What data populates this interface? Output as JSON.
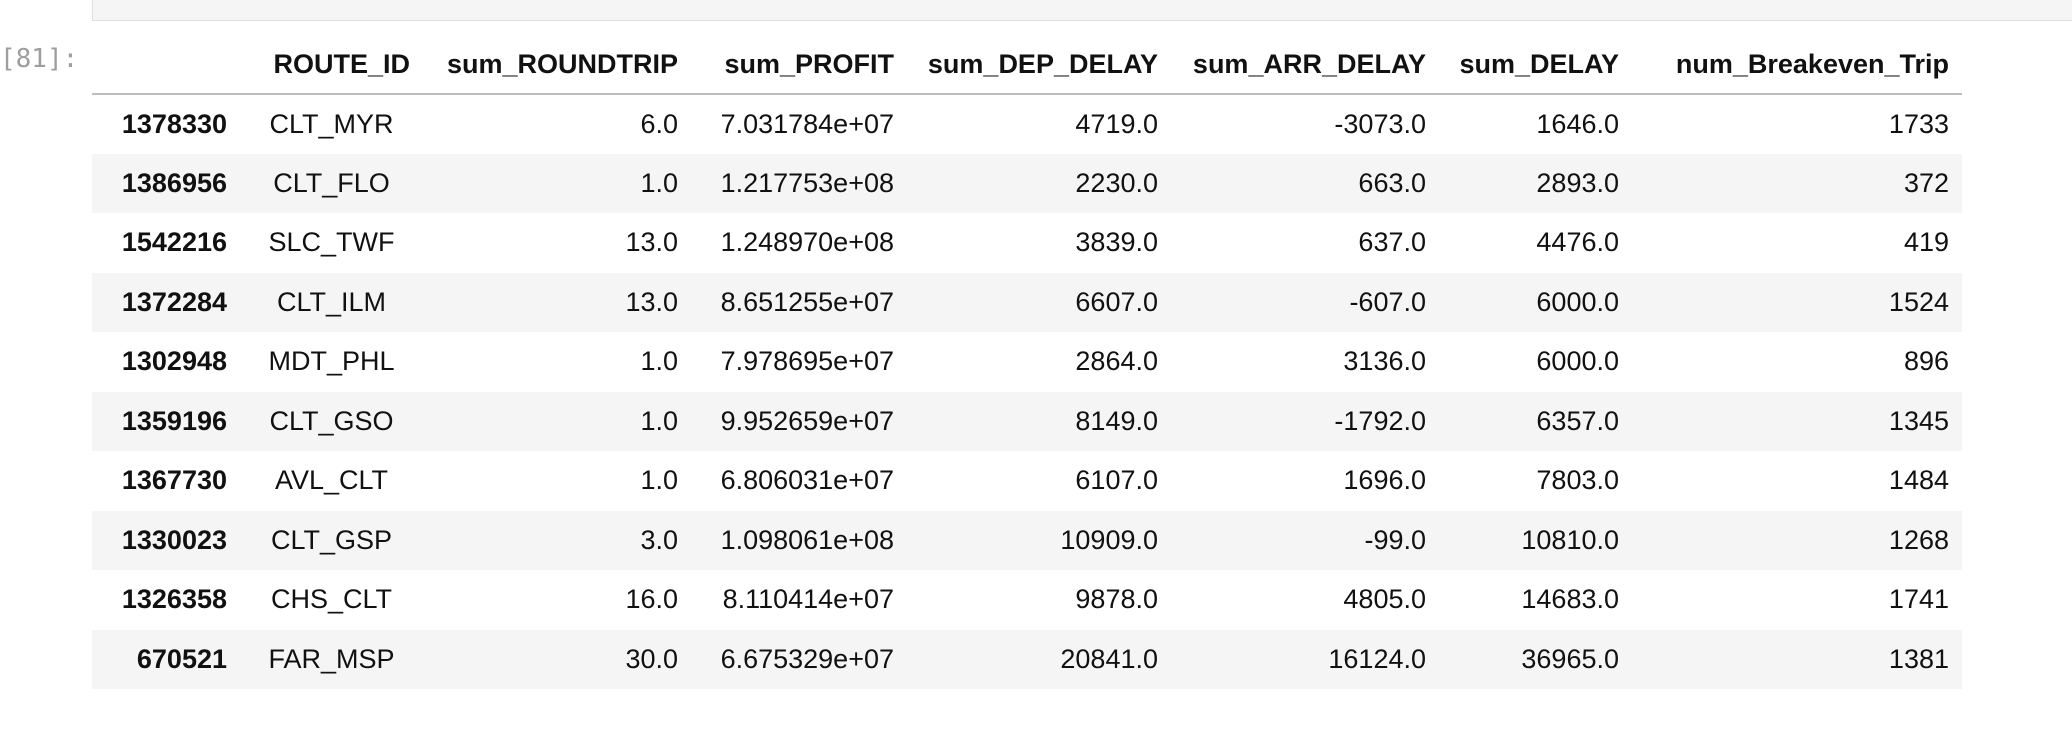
{
  "cell": {
    "prompt": "[81]:"
  },
  "table": {
    "columns": [
      "",
      "ROUTE_ID",
      "sum_ROUNDTRIP",
      "sum_PROFIT",
      "sum_DEP_DELAY",
      "sum_ARR_DELAY",
      "sum_DELAY",
      "num_Breakeven_Trip"
    ],
    "rows": [
      {
        "index": "1378330",
        "route_id": "CLT_MYR",
        "sum_roundtrip": "6.0",
        "sum_profit": "7.031784e+07",
        "sum_dep_delay": "4719.0",
        "sum_arr_delay": "-3073.0",
        "sum_delay": "1646.0",
        "num_breakeven_trip": "1733"
      },
      {
        "index": "1386956",
        "route_id": "CLT_FLO",
        "sum_roundtrip": "1.0",
        "sum_profit": "1.217753e+08",
        "sum_dep_delay": "2230.0",
        "sum_arr_delay": "663.0",
        "sum_delay": "2893.0",
        "num_breakeven_trip": "372"
      },
      {
        "index": "1542216",
        "route_id": "SLC_TWF",
        "sum_roundtrip": "13.0",
        "sum_profit": "1.248970e+08",
        "sum_dep_delay": "3839.0",
        "sum_arr_delay": "637.0",
        "sum_delay": "4476.0",
        "num_breakeven_trip": "419"
      },
      {
        "index": "1372284",
        "route_id": "CLT_ILM",
        "sum_roundtrip": "13.0",
        "sum_profit": "8.651255e+07",
        "sum_dep_delay": "6607.0",
        "sum_arr_delay": "-607.0",
        "sum_delay": "6000.0",
        "num_breakeven_trip": "1524"
      },
      {
        "index": "1302948",
        "route_id": "MDT_PHL",
        "sum_roundtrip": "1.0",
        "sum_profit": "7.978695e+07",
        "sum_dep_delay": "2864.0",
        "sum_arr_delay": "3136.0",
        "sum_delay": "6000.0",
        "num_breakeven_trip": "896"
      },
      {
        "index": "1359196",
        "route_id": "CLT_GSO",
        "sum_roundtrip": "1.0",
        "sum_profit": "9.952659e+07",
        "sum_dep_delay": "8149.0",
        "sum_arr_delay": "-1792.0",
        "sum_delay": "6357.0",
        "num_breakeven_trip": "1345"
      },
      {
        "index": "1367730",
        "route_id": "AVL_CLT",
        "sum_roundtrip": "1.0",
        "sum_profit": "6.806031e+07",
        "sum_dep_delay": "6107.0",
        "sum_arr_delay": "1696.0",
        "sum_delay": "7803.0",
        "num_breakeven_trip": "1484"
      },
      {
        "index": "1330023",
        "route_id": "CLT_GSP",
        "sum_roundtrip": "3.0",
        "sum_profit": "1.098061e+08",
        "sum_dep_delay": "10909.0",
        "sum_arr_delay": "-99.0",
        "sum_delay": "10810.0",
        "num_breakeven_trip": "1268"
      },
      {
        "index": "1326358",
        "route_id": "CHS_CLT",
        "sum_roundtrip": "16.0",
        "sum_profit": "8.110414e+07",
        "sum_dep_delay": "9878.0",
        "sum_arr_delay": "4805.0",
        "sum_delay": "14683.0",
        "num_breakeven_trip": "1741"
      },
      {
        "index": "670521",
        "route_id": "FAR_MSP",
        "sum_roundtrip": "30.0",
        "sum_profit": "6.675329e+07",
        "sum_dep_delay": "20841.0",
        "sum_arr_delay": "16124.0",
        "sum_delay": "36965.0",
        "num_breakeven_trip": "1381"
      }
    ]
  }
}
